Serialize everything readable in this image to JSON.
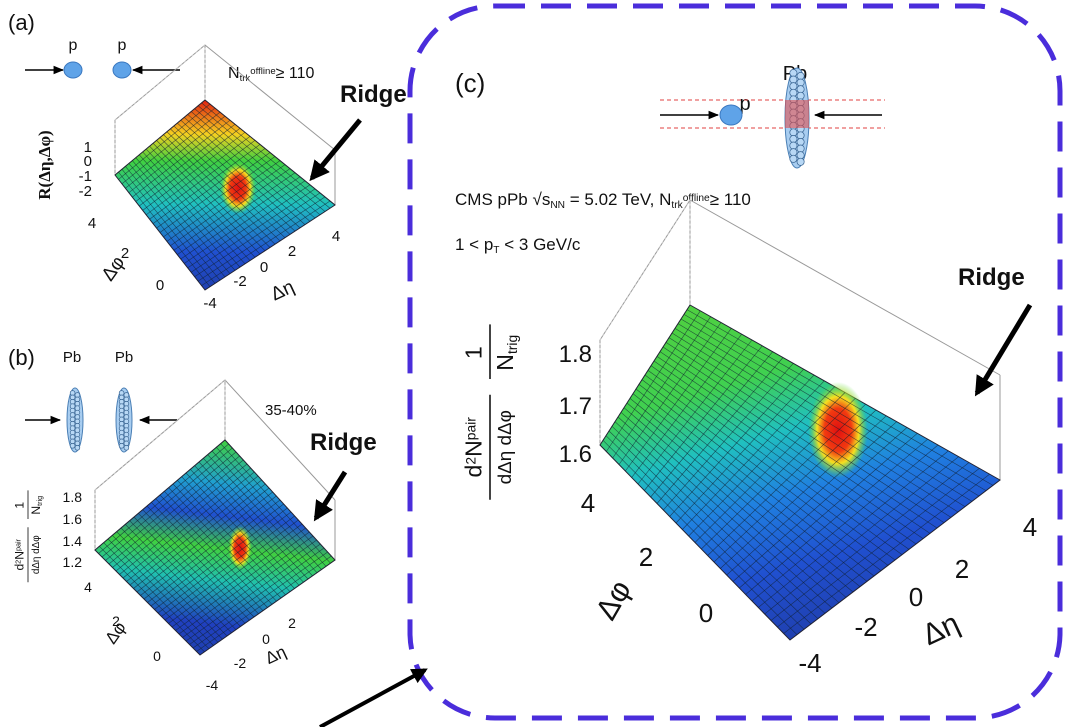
{
  "panel_a": {
    "label": "(a)",
    "beam": [
      "p",
      "p"
    ],
    "cut": {
      "symbol": "N",
      "sub": "trk",
      "sup": "offline",
      "rel": "≥ 110"
    },
    "ridge": "Ridge",
    "z_label": "R(Δη,Δφ)",
    "z_ticks": [
      "1",
      "0",
      "-1",
      "-2"
    ],
    "phi_label": "Δφ",
    "phi_ticks": [
      "4",
      "2",
      "0"
    ],
    "eta_label": "Δη",
    "eta_ticks": [
      "-4",
      "-2",
      "0",
      "2",
      "4"
    ]
  },
  "panel_b": {
    "label": "(b)",
    "beam": [
      "Pb",
      "Pb"
    ],
    "centrality": "35-40%",
    "ridge": "Ridge",
    "z_label": {
      "one": "1",
      "n": "N",
      "trig": "trig",
      "d": "d",
      "two": "2",
      "npair": "N",
      "pair": "pair",
      "den": "dΔη dΔφ"
    },
    "z_ticks": [
      "1.8",
      "1.6",
      "1.4",
      "1.2"
    ],
    "phi_label": "Δφ",
    "phi_ticks": [
      "4",
      "2",
      "0"
    ],
    "eta_label": "Δη",
    "eta_ticks": [
      "-4",
      "-2",
      "0",
      "2"
    ]
  },
  "panel_c": {
    "label": "(c)",
    "beam": [
      "p",
      "Pb"
    ],
    "system": {
      "pre": "CMS pPb √",
      "s": "s",
      "nn": "NN",
      "energy": " = 5.02 TeV, "
    },
    "cut": {
      "symbol": "N",
      "sub": "trk",
      "sup": "offline",
      "rel": "≥ 110"
    },
    "pt_cut": {
      "pre": "1 < p",
      "sub": "T",
      "post": " < 3 GeV/c"
    },
    "ridge": "Ridge",
    "z_label": {
      "one": "1",
      "n": "N",
      "trig": "trig",
      "d": "d",
      "two": "2",
      "npair": "N",
      "pair": "pair",
      "den": "dΔη dΔφ"
    },
    "z_ticks": [
      "1.8",
      "1.7",
      "1.6"
    ],
    "phi_label": "Δφ",
    "phi_ticks": [
      "4",
      "2",
      "0"
    ],
    "eta_label": "Δη",
    "eta_ticks": [
      "-4",
      "-2",
      "0",
      "2",
      "4"
    ]
  }
}
